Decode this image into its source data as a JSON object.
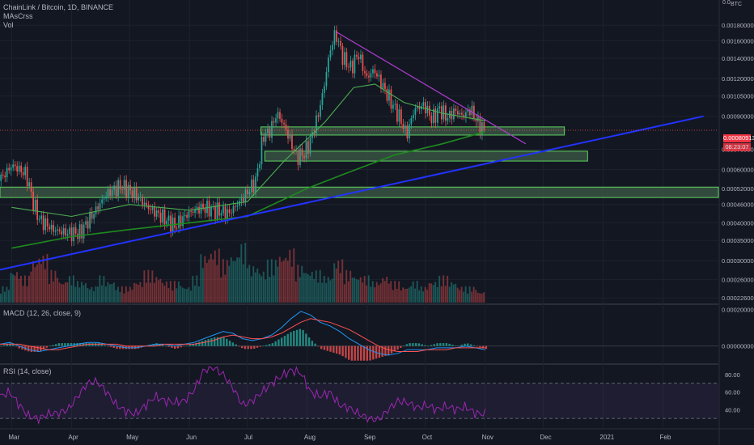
{
  "header": {
    "symbol_line": "ChainLink / Bitcoin, 1D, BINANCE",
    "indicator1": "MAsCrss",
    "indicator2": "Vol",
    "macd_label": "MACD (12, 26, close, 9)",
    "rsi_label": "RSI (14, close)",
    "price_unit": "BTC",
    "top_edge_label": "0.0",
    "top_edge_right": "000"
  },
  "current_price": {
    "value": "0.00080913",
    "countdown": "08:23:07"
  },
  "colors": {
    "background": "#131722",
    "up": "#26a69a",
    "down": "#ef5350",
    "ma_fast": "#4caf50",
    "ma_slow": "#1e8b1e",
    "trend_blue": "#2233ff",
    "trend_purple": "#b03fd3",
    "zone_fill": "#3d5c47",
    "zone_border": "#5fd35f",
    "macd_line": "#2196f3",
    "signal_line": "#ff5252",
    "rsi_line": "#9c27b0"
  },
  "chart_data": [
    {
      "type": "candlestick",
      "title": "ChainLink / Bitcoin, 1D, BINANCE",
      "ylabel": "BTC",
      "y_ticks": [
        0.0018,
        0.0016,
        0.0014,
        0.0012,
        0.00105,
        0.0009,
        0.0007,
        0.0006,
        0.00052,
        0.00046,
        0.0004,
        0.00035,
        0.0003,
        0.00026,
        0.000226
      ],
      "y_tick_labels": [
        "0.00180000",
        "0.00160000",
        "0.00140000",
        "0.00120000",
        "0.00105000",
        "0.00090000",
        "0.00070000",
        "0.00060000",
        "0.00052000",
        "0.00046000",
        "0.00040000",
        "0.00035000",
        "0.00030000",
        "0.00026000",
        "0.00022600"
      ],
      "y_scale": "log",
      "ylim": [
        0.000218,
        0.00205
      ],
      "x_ticks": [
        "Mar",
        "Apr",
        "May",
        "Jun",
        "Jul",
        "Aug",
        "Sep",
        "Oct",
        "Nov",
        "Dec",
        "2021",
        "Feb"
      ],
      "series_close": [
        {
          "x": "2020-02-24",
          "y": 0.00055
        },
        {
          "x": "2020-03-02",
          "y": 0.00062
        },
        {
          "x": "2020-03-09",
          "y": 0.00058
        },
        {
          "x": "2020-03-13",
          "y": 0.00046
        },
        {
          "x": "2020-03-16",
          "y": 0.00041
        },
        {
          "x": "2020-03-23",
          "y": 0.00038
        },
        {
          "x": "2020-03-30",
          "y": 0.00037
        },
        {
          "x": "2020-04-06",
          "y": 0.00037
        },
        {
          "x": "2020-04-13",
          "y": 0.00043
        },
        {
          "x": "2020-04-20",
          "y": 0.0005
        },
        {
          "x": "2020-04-27",
          "y": 0.00053
        },
        {
          "x": "2020-05-04",
          "y": 0.0005
        },
        {
          "x": "2020-05-11",
          "y": 0.00045
        },
        {
          "x": "2020-05-18",
          "y": 0.00042
        },
        {
          "x": "2020-05-25",
          "y": 0.00039
        },
        {
          "x": "2020-06-01",
          "y": 0.00043
        },
        {
          "x": "2020-06-08",
          "y": 0.00045
        },
        {
          "x": "2020-06-15",
          "y": 0.00044
        },
        {
          "x": "2020-06-22",
          "y": 0.00043
        },
        {
          "x": "2020-06-29",
          "y": 0.00048
        },
        {
          "x": "2020-07-06",
          "y": 0.00055
        },
        {
          "x": "2020-07-10",
          "y": 0.00078
        },
        {
          "x": "2020-07-13",
          "y": 0.0008
        },
        {
          "x": "2020-07-17",
          "y": 0.00092
        },
        {
          "x": "2020-07-20",
          "y": 0.00085
        },
        {
          "x": "2020-07-27",
          "y": 0.00066
        },
        {
          "x": "2020-07-31",
          "y": 0.00068
        },
        {
          "x": "2020-08-03",
          "y": 0.00074
        },
        {
          "x": "2020-08-07",
          "y": 0.0009
        },
        {
          "x": "2020-08-10",
          "y": 0.0011
        },
        {
          "x": "2020-08-13",
          "y": 0.00145
        },
        {
          "x": "2020-08-16",
          "y": 0.0017
        },
        {
          "x": "2020-08-20",
          "y": 0.0014
        },
        {
          "x": "2020-08-24",
          "y": 0.0013
        },
        {
          "x": "2020-08-28",
          "y": 0.00145
        },
        {
          "x": "2020-09-01",
          "y": 0.0012
        },
        {
          "x": "2020-09-05",
          "y": 0.00128
        },
        {
          "x": "2020-09-09",
          "y": 0.00115
        },
        {
          "x": "2020-09-14",
          "y": 0.001
        },
        {
          "x": "2020-09-18",
          "y": 0.0009
        },
        {
          "x": "2020-09-22",
          "y": 0.00078
        },
        {
          "x": "2020-09-26",
          "y": 0.00095
        },
        {
          "x": "2020-10-01",
          "y": 0.00098
        },
        {
          "x": "2020-10-05",
          "y": 0.00088
        },
        {
          "x": "2020-10-09",
          "y": 0.00095
        },
        {
          "x": "2020-10-13",
          "y": 0.00089
        },
        {
          "x": "2020-10-17",
          "y": 0.00094
        },
        {
          "x": "2020-10-21",
          "y": 0.0009
        },
        {
          "x": "2020-10-25",
          "y": 0.00095
        },
        {
          "x": "2020-10-29",
          "y": 0.00085
        },
        {
          "x": "2020-11-01",
          "y": 0.00081
        }
      ],
      "zones": [
        {
          "from": 0.00078,
          "to": 0.00083
        },
        {
          "from": 0.00064,
          "to": 0.00069
        },
        {
          "from": 0.000485,
          "to": 0.000525
        }
      ],
      "ma_fast": [
        {
          "x": "2020-03-01",
          "y": 0.00045
        },
        {
          "x": "2020-04-01",
          "y": 0.00042
        },
        {
          "x": "2020-05-01",
          "y": 0.00046
        },
        {
          "x": "2020-06-01",
          "y": 0.00044
        },
        {
          "x": "2020-07-01",
          "y": 0.00047
        },
        {
          "x": "2020-07-20",
          "y": 0.00064
        },
        {
          "x": "2020-08-10",
          "y": 0.00086
        },
        {
          "x": "2020-08-25",
          "y": 0.00112
        },
        {
          "x": "2020-09-05",
          "y": 0.00115
        },
        {
          "x": "2020-09-20",
          "y": 0.001
        },
        {
          "x": "2020-10-10",
          "y": 0.00092
        },
        {
          "x": "2020-11-01",
          "y": 0.00087
        }
      ],
      "ma_slow": [
        {
          "x": "2020-03-01",
          "y": 0.00033
        },
        {
          "x": "2020-04-01",
          "y": 0.00036
        },
        {
          "x": "2020-05-01",
          "y": 0.00038
        },
        {
          "x": "2020-06-01",
          "y": 0.0004
        },
        {
          "x": "2020-07-01",
          "y": 0.00042
        },
        {
          "x": "2020-08-01",
          "y": 0.00052
        },
        {
          "x": "2020-08-20",
          "y": 0.00058
        },
        {
          "x": "2020-09-15",
          "y": 0.00067
        },
        {
          "x": "2020-10-10",
          "y": 0.00073
        },
        {
          "x": "2020-11-01",
          "y": 0.0008
        }
      ],
      "trendline_blue": [
        {
          "x": "2020-02-24",
          "y": 0.00028
        },
        {
          "x": "2021-02-22",
          "y": 0.0009
        }
      ],
      "trendline_purple": [
        {
          "x": "2020-08-16",
          "y": 0.00171
        },
        {
          "x": "2020-11-22",
          "y": 0.00073
        }
      ]
    },
    {
      "type": "bar",
      "title": "Vol",
      "values": [
        3,
        6,
        5,
        8,
        9,
        6,
        4,
        5,
        4,
        3,
        5,
        4,
        3,
        3,
        4,
        6,
        5,
        4,
        4,
        3,
        5,
        9,
        10,
        8,
        9,
        11,
        7,
        6,
        8,
        9,
        10,
        7,
        6,
        6,
        5,
        8,
        6,
        5,
        5,
        4,
        5,
        4,
        3,
        4,
        3,
        4,
        5,
        4,
        3,
        3,
        2
      ]
    },
    {
      "type": "line",
      "title": "MACD (12, 26, close, 9)",
      "y_tick_labels": [
        "0.00020000",
        "0.00000000"
      ],
      "ylim": [
        -9e-05,
        0.00022
      ],
      "series": [
        {
          "name": "MACD",
          "values": [
            1e-05,
            2e-05,
            0.0,
            -2e-05,
            -3e-05,
            -2e-05,
            -1e-05,
            0.0,
            1e-05,
            2e-05,
            2e-05,
            1e-05,
            0.0,
            -1e-05,
            -1e-05,
            0.0,
            1e-05,
            1e-05,
            0.0,
            1e-05,
            2e-05,
            4e-05,
            6e-05,
            8e-05,
            7e-05,
            4e-05,
            3e-05,
            4e-05,
            6e-05,
            0.0001,
            0.00015,
            0.00019,
            0.00017,
            0.00013,
            0.00011,
            8e-05,
            4e-05,
            1e-05,
            -2e-05,
            -4e-05,
            -5e-05,
            -4e-05,
            -2e-05,
            -2e-05,
            -2e-05,
            -1e-05,
            -1e-05,
            -1e-05,
            0.0,
            -1e-05,
            -2e-05
          ]
        },
        {
          "name": "Signal",
          "values": [
            1e-05,
            1e-05,
            1e-05,
            0.0,
            -1e-05,
            -2e-05,
            -2e-05,
            -1e-05,
            0.0,
            1e-05,
            1e-05,
            1e-05,
            1e-05,
            0.0,
            0.0,
            0.0,
            0.0,
            1e-05,
            1e-05,
            1e-05,
            1e-05,
            2e-05,
            3e-05,
            5e-05,
            6e-05,
            5e-05,
            4e-05,
            4e-05,
            5e-05,
            7e-05,
            0.0001,
            0.00013,
            0.00015,
            0.00014,
            0.00013,
            0.00011,
            9e-05,
            6e-05,
            3e-05,
            0.0,
            -2e-05,
            -3e-05,
            -3e-05,
            -3e-05,
            -2e-05,
            -2e-05,
            -2e-05,
            -1e-05,
            -1e-05,
            -1e-05,
            -1e-05
          ]
        }
      ]
    },
    {
      "type": "line",
      "title": "RSI (14, close)",
      "y_tick_labels": [
        "80.00",
        "60.00",
        "40.00"
      ],
      "ylim": [
        20,
        90
      ],
      "bands": [
        30,
        70
      ],
      "series": [
        {
          "name": "RSI",
          "values": [
            55,
            60,
            45,
            32,
            30,
            35,
            36,
            40,
            55,
            70,
            72,
            60,
            45,
            38,
            35,
            45,
            55,
            50,
            48,
            50,
            62,
            85,
            88,
            80,
            65,
            45,
            50,
            60,
            70,
            78,
            85,
            82,
            60,
            55,
            60,
            45,
            42,
            35,
            30,
            28,
            40,
            50,
            48,
            42,
            45,
            40,
            44,
            40,
            43,
            36,
            35
          ]
        }
      ]
    }
  ]
}
